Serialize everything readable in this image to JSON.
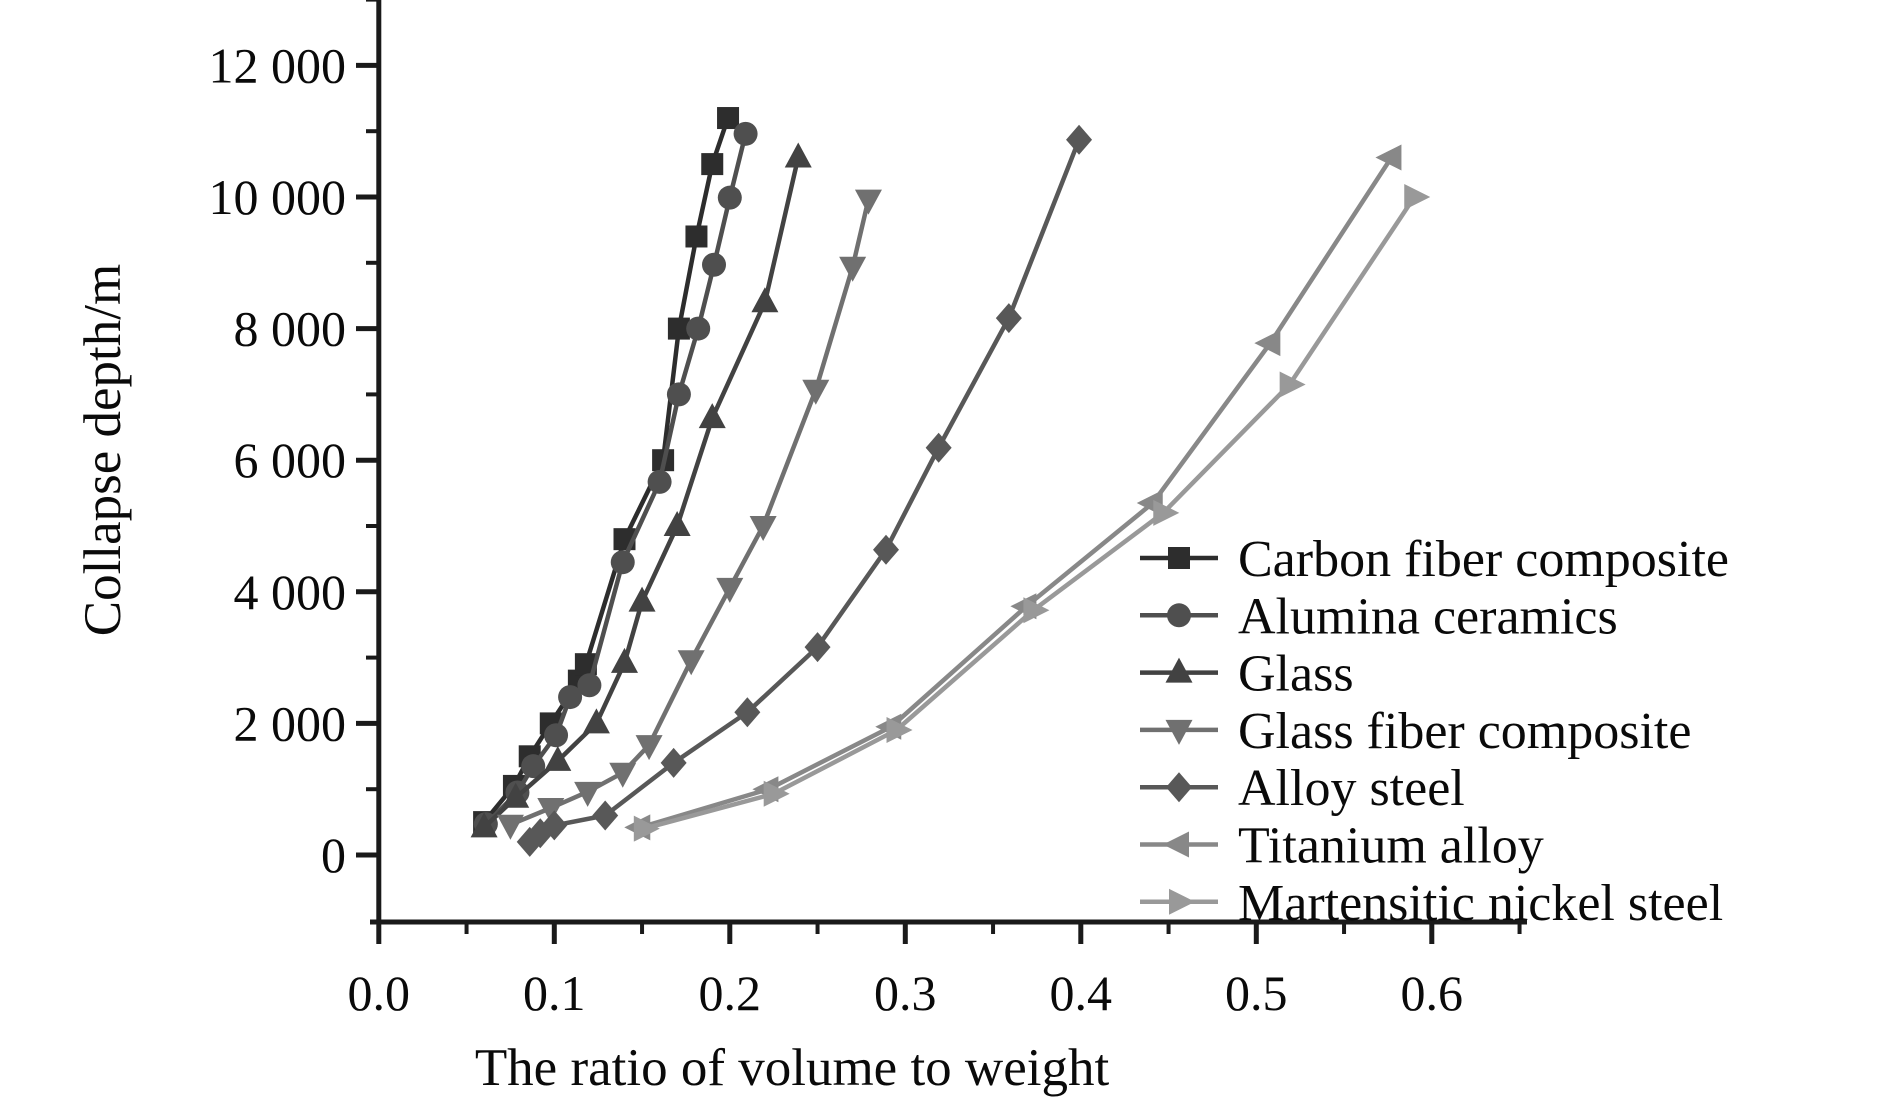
{
  "figure": {
    "background": "#ffffff",
    "axis_color": "#1a1a1a",
    "text_color": "#0a0a0a"
  },
  "chart_data": {
    "type": "line",
    "title": "",
    "xlabel": "The ratio of volume to weight",
    "ylabel": "Collapse depth/m",
    "xlim": [
      0,
      0.65
    ],
    "ylim": [
      -1000,
      13000
    ],
    "grid": false,
    "legend_position": "inside-right",
    "x_ticks": [
      0.0,
      0.1,
      0.2,
      0.3,
      0.4,
      0.5,
      0.6
    ],
    "x_tick_labels": [
      "0.0",
      "0.1",
      "0.2",
      "0.3",
      "0.4",
      "0.5",
      "0.6"
    ],
    "x_minor_ticks": [
      0.05,
      0.15,
      0.25,
      0.35,
      0.45,
      0.55,
      0.65
    ],
    "y_ticks": [
      0,
      2000,
      4000,
      6000,
      8000,
      10000,
      12000
    ],
    "y_tick_labels": [
      "0",
      "2 000",
      "4 000",
      "6 000",
      "8 000",
      "10 000",
      "12 000"
    ],
    "y_minor_ticks": [
      1000,
      3000,
      5000,
      7000,
      9000,
      11000,
      13000
    ],
    "series": [
      {
        "name": "Carbon fiber composite",
        "marker": "square",
        "color": "#2d2d2d",
        "points": [
          [
            0.06,
            500
          ],
          [
            0.077,
            1050
          ],
          [
            0.086,
            1500
          ],
          [
            0.098,
            2000
          ],
          [
            0.114,
            2650
          ],
          [
            0.118,
            2900
          ],
          [
            0.14,
            4800
          ],
          [
            0.162,
            6000
          ],
          [
            0.171,
            8000
          ],
          [
            0.181,
            9400
          ],
          [
            0.19,
            10500
          ],
          [
            0.199,
            11200
          ]
        ]
      },
      {
        "name": "Alumina ceramics",
        "marker": "circle",
        "color": "#4f4f4f",
        "points": [
          [
            0.061,
            470
          ],
          [
            0.079,
            950
          ],
          [
            0.088,
            1350
          ],
          [
            0.101,
            1820
          ],
          [
            0.109,
            2400
          ],
          [
            0.12,
            2580
          ],
          [
            0.139,
            4450
          ],
          [
            0.16,
            5670
          ],
          [
            0.171,
            7000
          ],
          [
            0.182,
            8000
          ],
          [
            0.191,
            8970
          ],
          [
            0.2,
            9990
          ],
          [
            0.209,
            10960
          ]
        ]
      },
      {
        "name": "Glass",
        "marker": "triangle-up",
        "color": "#424242",
        "points": [
          [
            0.06,
            420
          ],
          [
            0.078,
            870
          ],
          [
            0.102,
            1430
          ],
          [
            0.124,
            2000
          ],
          [
            0.14,
            2920
          ],
          [
            0.15,
            3850
          ],
          [
            0.17,
            5000
          ],
          [
            0.19,
            6640
          ],
          [
            0.22,
            8400
          ],
          [
            0.239,
            10600
          ]
        ]
      },
      {
        "name": "Glass fiber composite",
        "marker": "triangle-down",
        "color": "#707070",
        "points": [
          [
            0.075,
            460
          ],
          [
            0.098,
            715
          ],
          [
            0.119,
            960
          ],
          [
            0.139,
            1250
          ],
          [
            0.154,
            1670
          ],
          [
            0.178,
            2960
          ],
          [
            0.2,
            4060
          ],
          [
            0.219,
            5000
          ],
          [
            0.249,
            7070
          ],
          [
            0.27,
            8940
          ],
          [
            0.279,
            9960
          ]
        ]
      },
      {
        "name": "Alloy steel",
        "marker": "diamond",
        "color": "#585858",
        "points": [
          [
            0.086,
            200
          ],
          [
            0.092,
            330
          ],
          [
            0.1,
            450
          ],
          [
            0.129,
            600
          ],
          [
            0.168,
            1400
          ],
          [
            0.21,
            2170
          ],
          [
            0.25,
            3160
          ],
          [
            0.289,
            4640
          ],
          [
            0.319,
            6190
          ],
          [
            0.359,
            8160
          ],
          [
            0.399,
            10870
          ]
        ]
      },
      {
        "name": "Titanium alloy",
        "marker": "triangle-left",
        "color": "#888888",
        "points": [
          [
            0.149,
            420
          ],
          [
            0.222,
            1000
          ],
          [
            0.292,
            1950
          ],
          [
            0.369,
            3780
          ],
          [
            0.441,
            5350
          ],
          [
            0.508,
            7780
          ],
          [
            0.577,
            10600
          ]
        ]
      },
      {
        "name": "Martensitic nickel steel",
        "marker": "triangle-right",
        "color": "#999999",
        "points": [
          [
            0.151,
            400
          ],
          [
            0.225,
            930
          ],
          [
            0.295,
            1900
          ],
          [
            0.373,
            3720
          ],
          [
            0.447,
            5200
          ],
          [
            0.519,
            7150
          ],
          [
            0.59,
            10000
          ]
        ]
      }
    ]
  }
}
